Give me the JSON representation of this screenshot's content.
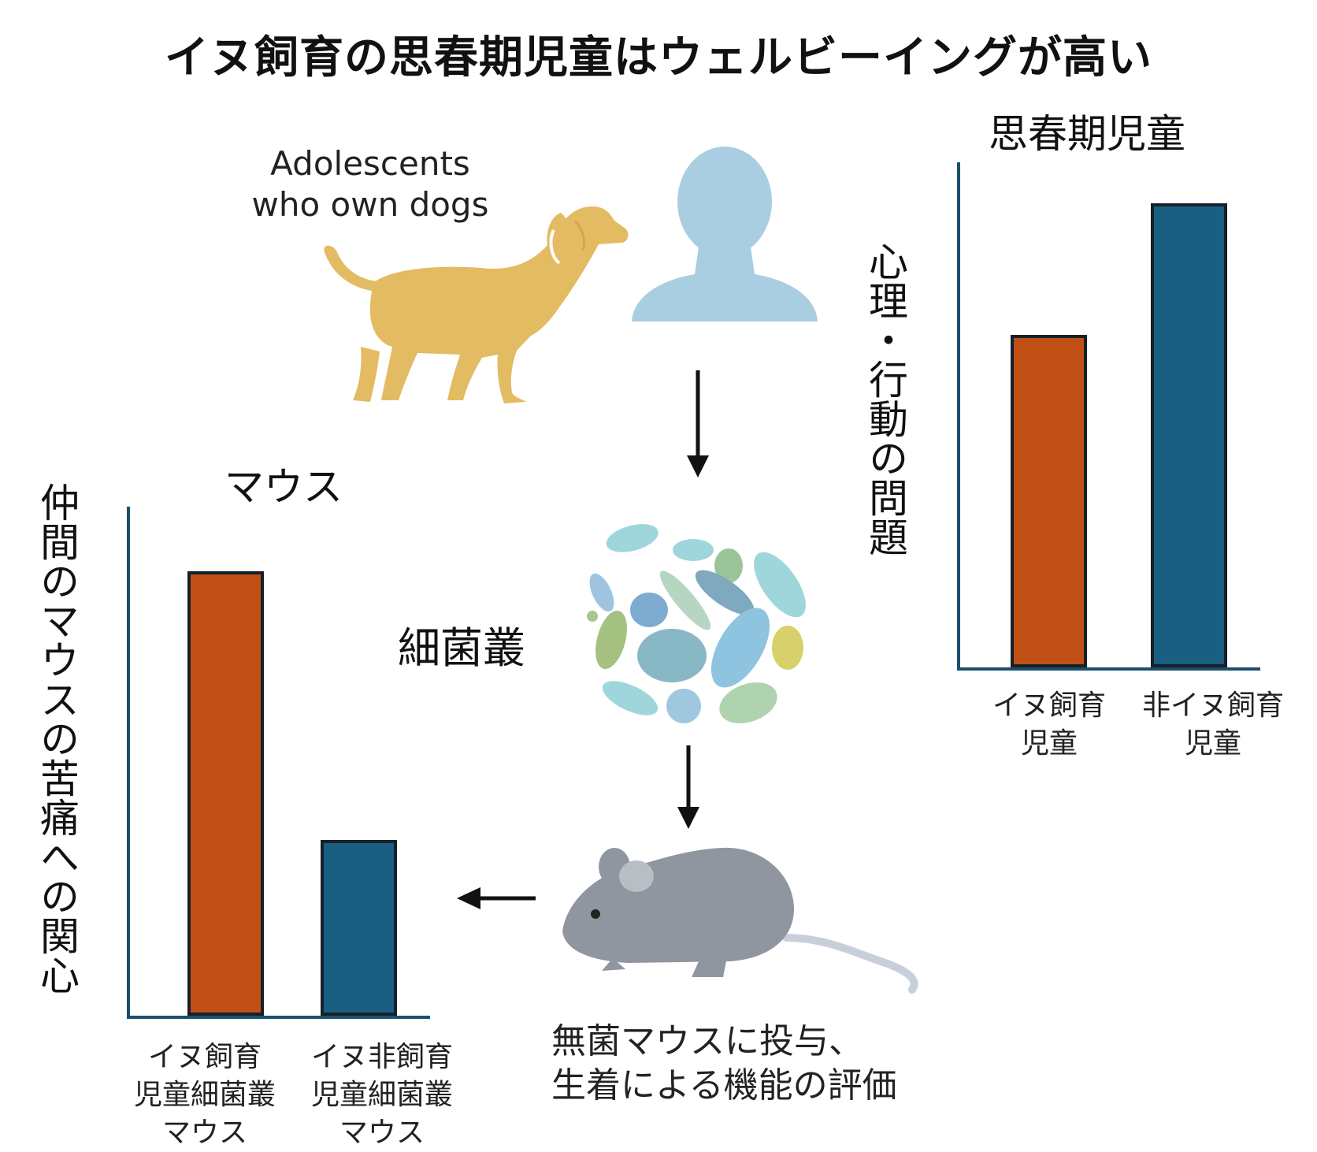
{
  "title": "イヌ飼育の思春期児童はウェルビーイングが高い",
  "dog_caption": [
    "Adolescents",
    "who own dogs"
  ],
  "microbiome_label": "細菌叢",
  "mouse_caption": [
    "無菌マウスに投与、",
    "生着による機能の評価"
  ],
  "colors": {
    "dog": "#e3bb62",
    "person": "#a9cde1",
    "bar_dog": "#c05016",
    "bar_nondog": "#1a5f82",
    "axis": "#1c4f6c",
    "mouse": "#8f969f"
  },
  "icons": [
    "dog-icon",
    "person-icon",
    "bacteria-icon",
    "mouse-icon",
    "arrow-down-icon",
    "arrow-left-icon"
  ],
  "chart_data": [
    {
      "type": "bar",
      "title": "思春期児童",
      "ylabel": "心理・行動の問題",
      "categories": [
        [
          "イヌ飼育",
          "児童"
        ],
        [
          "非イヌ飼育",
          "児童"
        ]
      ],
      "values": [
        6.6,
        9.2
      ],
      "ylim": [
        0,
        10
      ],
      "colors": [
        "#c05016",
        "#1a5f82"
      ]
    },
    {
      "type": "bar",
      "title": "マウス",
      "ylabel": "仲間のマウスの苦痛への関心",
      "categories": [
        [
          "イヌ飼育",
          "児童細菌叢",
          "マウス"
        ],
        [
          "イヌ非飼育",
          "児童細菌叢",
          "マウス"
        ]
      ],
      "values": [
        9.1,
        3.6
      ],
      "ylim": [
        0,
        10
      ],
      "colors": [
        "#c05016",
        "#1a5f82"
      ]
    }
  ]
}
